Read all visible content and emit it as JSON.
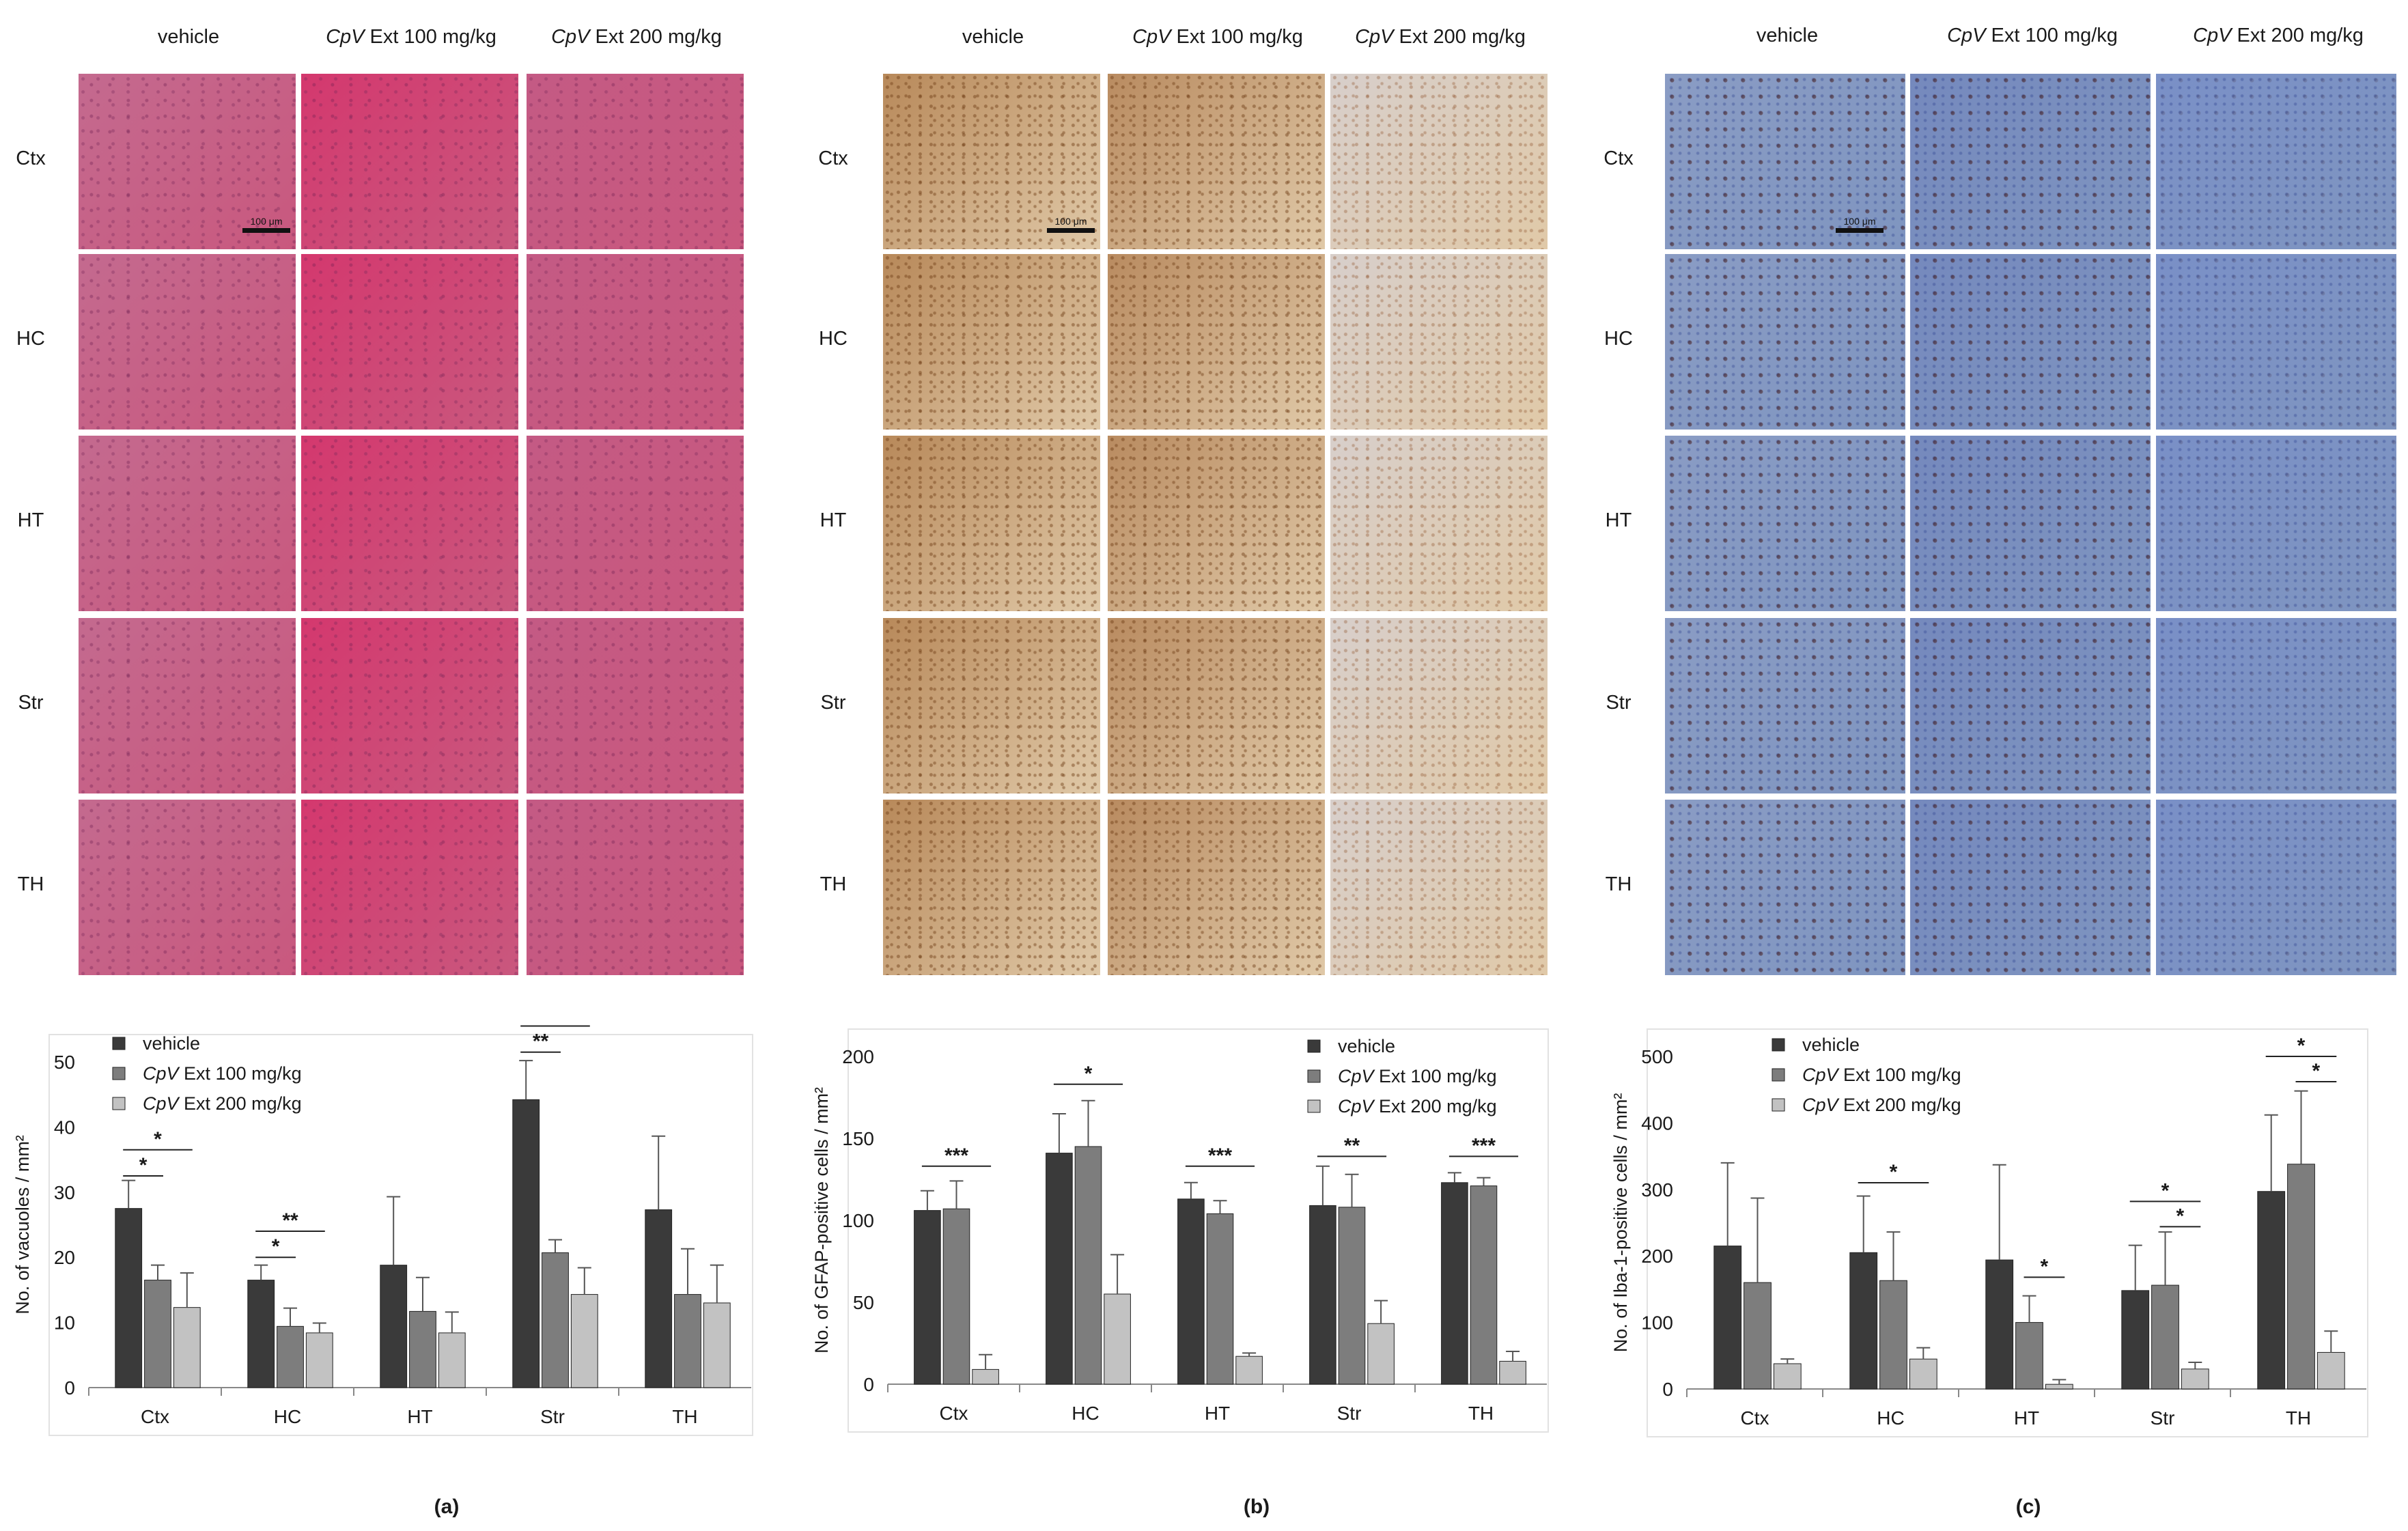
{
  "panels": [
    {
      "letter": "(a)",
      "stain": "he",
      "col_headers": [
        {
          "italic": "",
          "text": "vehicle"
        },
        {
          "italic": "CpV",
          "text": " Ext 100 mg/kg"
        },
        {
          "italic": "CpV",
          "text": " Ext 200 mg/kg"
        }
      ],
      "row_labels": [
        "Ctx",
        "HC",
        "HT",
        "Str",
        "TH"
      ],
      "scalebar": "100 μm"
    },
    {
      "letter": "(b)",
      "stain": "gfap",
      "col_headers": [
        {
          "italic": "",
          "text": "vehicle"
        },
        {
          "italic": "CpV",
          "text": " Ext 100 mg/kg"
        },
        {
          "italic": "CpV",
          "text": " Ext 200 mg/kg"
        }
      ],
      "row_labels": [
        "Ctx",
        "HC",
        "HT",
        "Str",
        "TH"
      ],
      "scalebar": "100 μm"
    },
    {
      "letter": "(c)",
      "stain": "iba1",
      "col_headers": [
        {
          "italic": "",
          "text": "vehicle"
        },
        {
          "italic": "CpV",
          "text": " Ext 100 mg/kg"
        },
        {
          "italic": "CpV",
          "text": " Ext 200 mg/kg"
        }
      ],
      "row_labels": [
        "Ctx",
        "HC",
        "HT",
        "Str",
        "TH"
      ],
      "scalebar": "100 μm"
    }
  ],
  "colors": {
    "vehicle": "#3a3a3a",
    "ext100": "#7d7d7d",
    "ext200": "#c2c2c2",
    "he_bg": "#c9587e",
    "gfap_bg": "#c9a47a",
    "iba1_bg": "#7f95c0"
  },
  "chart_data": [
    {
      "type": "bar",
      "ylabel": "No. of vacuoles / mm²",
      "ylim": [
        0,
        50
      ],
      "yticks": [
        0,
        10,
        20,
        30,
        40,
        50
      ],
      "categories": [
        "Ctx",
        "HC",
        "HT",
        "Str",
        "TH"
      ],
      "legend_position": "top-left",
      "series": [
        {
          "name": "vehicle",
          "italic": "",
          "values": [
            27.5,
            16.5,
            18.8,
            44.2,
            27.3
          ],
          "errors": [
            4.3,
            2.3,
            10.5,
            6.0,
            11.3
          ]
        },
        {
          "name": "Ext 100 mg/kg",
          "italic": "CpV",
          "values": [
            16.5,
            9.4,
            11.7,
            20.7,
            14.3
          ],
          "errors": [
            2.3,
            2.8,
            5.2,
            2.0,
            7.0
          ]
        },
        {
          "name": "Ext 200 mg/kg",
          "italic": "CpV",
          "values": [
            12.3,
            8.4,
            8.4,
            14.3,
            13.0
          ],
          "errors": [
            5.3,
            1.5,
            3.2,
            4.1,
            5.8
          ]
        }
      ],
      "significance": [
        {
          "cat": 0,
          "from": 0,
          "to": 1,
          "label": "*",
          "y": 32.5
        },
        {
          "cat": 0,
          "from": 0,
          "to": 2,
          "label": "*",
          "y": 36.5
        },
        {
          "cat": 1,
          "from": 0,
          "to": 1,
          "label": "*",
          "y": 20.0
        },
        {
          "cat": 1,
          "from": 0,
          "to": 2,
          "label": "**",
          "y": 24.0
        },
        {
          "cat": 3,
          "from": 0,
          "to": 1,
          "label": "**",
          "y": 51.5
        },
        {
          "cat": 3,
          "from": 0,
          "to": 2,
          "label": "**",
          "y": 55.5
        }
      ]
    },
    {
      "type": "bar",
      "ylabel": "No. of GFAP-positive cells / mm²",
      "ylim": [
        0,
        200
      ],
      "yticks": [
        0,
        50,
        100,
        150,
        200
      ],
      "categories": [
        "Ctx",
        "HC",
        "HT",
        "Str",
        "TH"
      ],
      "legend_position": "top-right",
      "series": [
        {
          "name": "vehicle",
          "italic": "",
          "values": [
            106,
            141,
            113,
            109,
            123
          ],
          "errors": [
            12,
            24,
            10,
            24,
            6
          ]
        },
        {
          "name": "Ext 100 mg/kg",
          "italic": "CpV",
          "values": [
            107,
            145,
            104,
            108,
            121
          ],
          "errors": [
            17,
            28,
            8,
            20,
            5
          ]
        },
        {
          "name": "Ext 200 mg/kg",
          "italic": "CpV",
          "values": [
            9,
            55,
            17,
            37,
            14
          ],
          "errors": [
            9,
            24,
            2,
            14,
            6
          ]
        }
      ],
      "significance": [
        {
          "cat": 0,
          "from": 0,
          "to": 2,
          "label": "***",
          "y": 133
        },
        {
          "cat": 1,
          "from": 0,
          "to": 2,
          "label": "*",
          "y": 183
        },
        {
          "cat": 2,
          "from": 0,
          "to": 2,
          "label": "***",
          "y": 133
        },
        {
          "cat": 3,
          "from": 0,
          "to": 2,
          "label": "**",
          "y": 139
        },
        {
          "cat": 4,
          "from": 0,
          "to": 2,
          "label": "***",
          "y": 139
        }
      ]
    },
    {
      "type": "bar",
      "ylabel": "No. of Iba-1-positive cells / mm²",
      "ylim": [
        0,
        500
      ],
      "yticks": [
        0,
        100,
        200,
        300,
        400,
        500
      ],
      "categories": [
        "Ctx",
        "HC",
        "HT",
        "Str",
        "TH"
      ],
      "legend_position": "top-left",
      "series": [
        {
          "name": "vehicle",
          "italic": "",
          "values": [
            215,
            205,
            194,
            148,
            297
          ],
          "errors": [
            125,
            85,
            143,
            68,
            115
          ]
        },
        {
          "name": "Ext 100 mg/kg",
          "italic": "CpV",
          "values": [
            160,
            163,
            100,
            156,
            338
          ],
          "errors": [
            127,
            73,
            40,
            80,
            110
          ]
        },
        {
          "name": "Ext 200 mg/kg",
          "italic": "CpV",
          "values": [
            38,
            45,
            7,
            30,
            55
          ],
          "errors": [
            7,
            17,
            7,
            10,
            32
          ]
        }
      ],
      "significance": [
        {
          "cat": 1,
          "from": 0,
          "to": 2,
          "label": "*",
          "y": 310
        },
        {
          "cat": 2,
          "from": 1,
          "to": 2,
          "label": "*",
          "y": 168
        },
        {
          "cat": 3,
          "from": 0,
          "to": 2,
          "label": "*",
          "y": 282
        },
        {
          "cat": 3,
          "from": 1,
          "to": 2,
          "label": "*",
          "y": 244
        },
        {
          "cat": 4,
          "from": 0,
          "to": 2,
          "label": "*",
          "y": 500
        },
        {
          "cat": 4,
          "from": 1,
          "to": 2,
          "label": "*",
          "y": 462
        }
      ]
    }
  ]
}
